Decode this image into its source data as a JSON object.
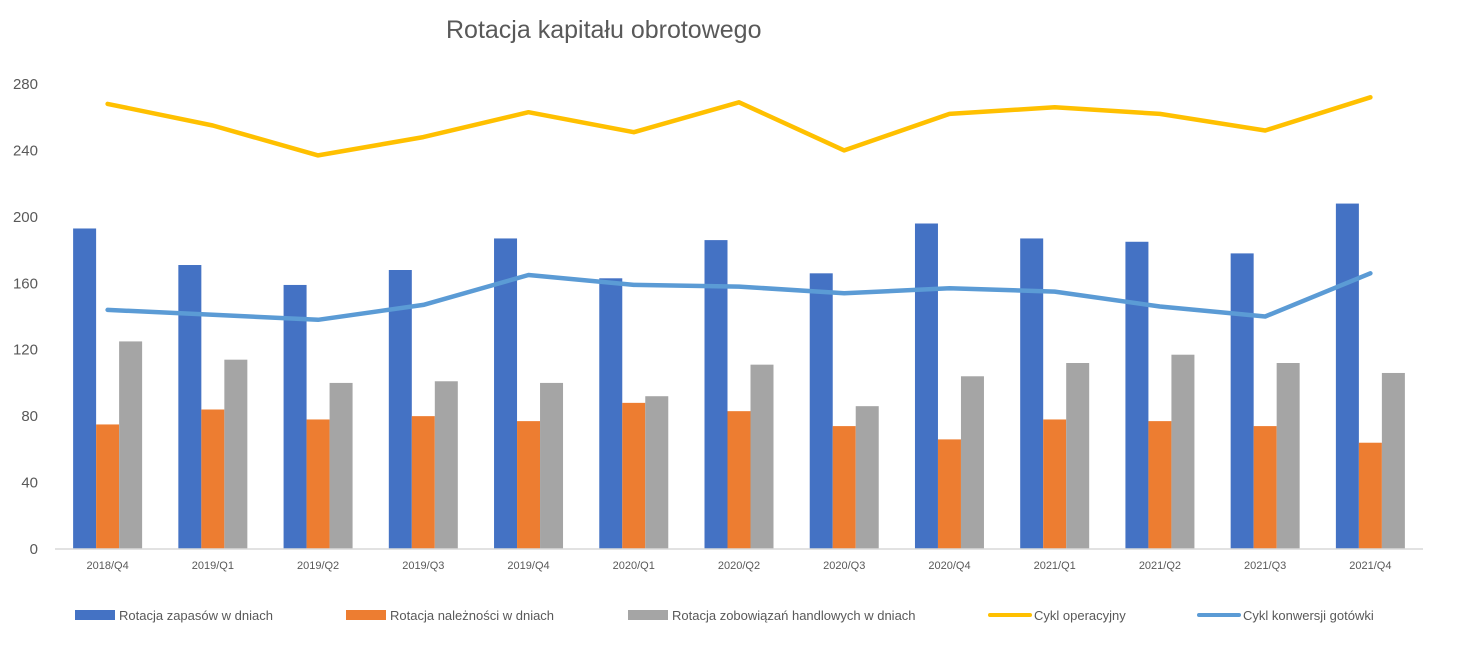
{
  "chart_data": {
    "type": "bar",
    "title": "Rotacja kapitału obrotowego",
    "xlabel": "",
    "ylabel": "",
    "ylim": [
      0,
      280
    ],
    "yticks": [
      0,
      40,
      80,
      120,
      160,
      200,
      240,
      280
    ],
    "grid": false,
    "legend_position": "bottom",
    "categories": [
      "2018/Q4",
      "2019/Q1",
      "2019/Q2",
      "2019/Q3",
      "2019/Q4",
      "2020/Q1",
      "2020/Q2",
      "2020/Q3",
      "2020/Q4",
      "2021/Q1",
      "2021/Q2",
      "2021/Q3",
      "2021/Q4"
    ],
    "series": [
      {
        "name": "Rotacja zapasów w dniach",
        "type": "bar",
        "color": "#4472C4",
        "values": [
          193,
          171,
          159,
          168,
          187,
          163,
          186,
          166,
          196,
          187,
          185,
          178,
          208
        ]
      },
      {
        "name": "Rotacja należności w dniach",
        "type": "bar",
        "color": "#ED7D31",
        "values": [
          75,
          84,
          78,
          80,
          77,
          88,
          83,
          74,
          66,
          78,
          77,
          74,
          64
        ]
      },
      {
        "name": "Rotacja zobowiązań handlowych w dniach",
        "type": "bar",
        "color": "#A5A5A5",
        "values": [
          125,
          114,
          100,
          101,
          100,
          92,
          111,
          86,
          104,
          112,
          117,
          112,
          106
        ]
      },
      {
        "name": "Cykl operacyjny",
        "type": "line",
        "color": "#FFC000",
        "values": [
          268,
          255,
          237,
          248,
          263,
          251,
          269,
          240,
          262,
          266,
          262,
          252,
          272
        ]
      },
      {
        "name": "Cykl konwersji gotówki",
        "type": "line",
        "color": "#5B9BD5",
        "values": [
          144,
          141,
          138,
          147,
          165,
          159,
          158,
          154,
          157,
          155,
          146,
          140,
          166
        ]
      }
    ]
  }
}
